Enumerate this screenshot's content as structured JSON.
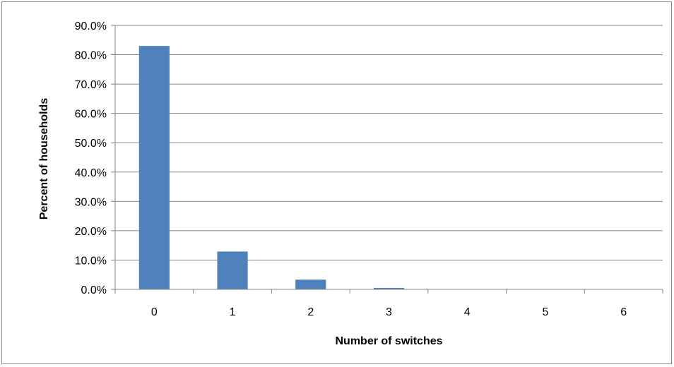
{
  "chart_data": {
    "type": "bar",
    "categories": [
      "0",
      "1",
      "2",
      "3",
      "4",
      "5",
      "6"
    ],
    "values": [
      83.0,
      12.9,
      3.3,
      0.5,
      0.05,
      0.02,
      0.01
    ],
    "title": "",
    "xlabel": "Number of switches",
    "ylabel": "Percent of households",
    "ylim": [
      0,
      90
    ],
    "yticks": [
      0,
      10,
      20,
      30,
      40,
      50,
      60,
      70,
      80,
      90
    ],
    "ytick_labels": [
      "0.0%",
      "10.0%",
      "20.0%",
      "30.0%",
      "40.0%",
      "50.0%",
      "60.0%",
      "70.0%",
      "80.0%",
      "90.0%"
    ],
    "grid": true,
    "legend": "none",
    "bar_color": "#4f81bd",
    "grid_color": "#868686"
  }
}
